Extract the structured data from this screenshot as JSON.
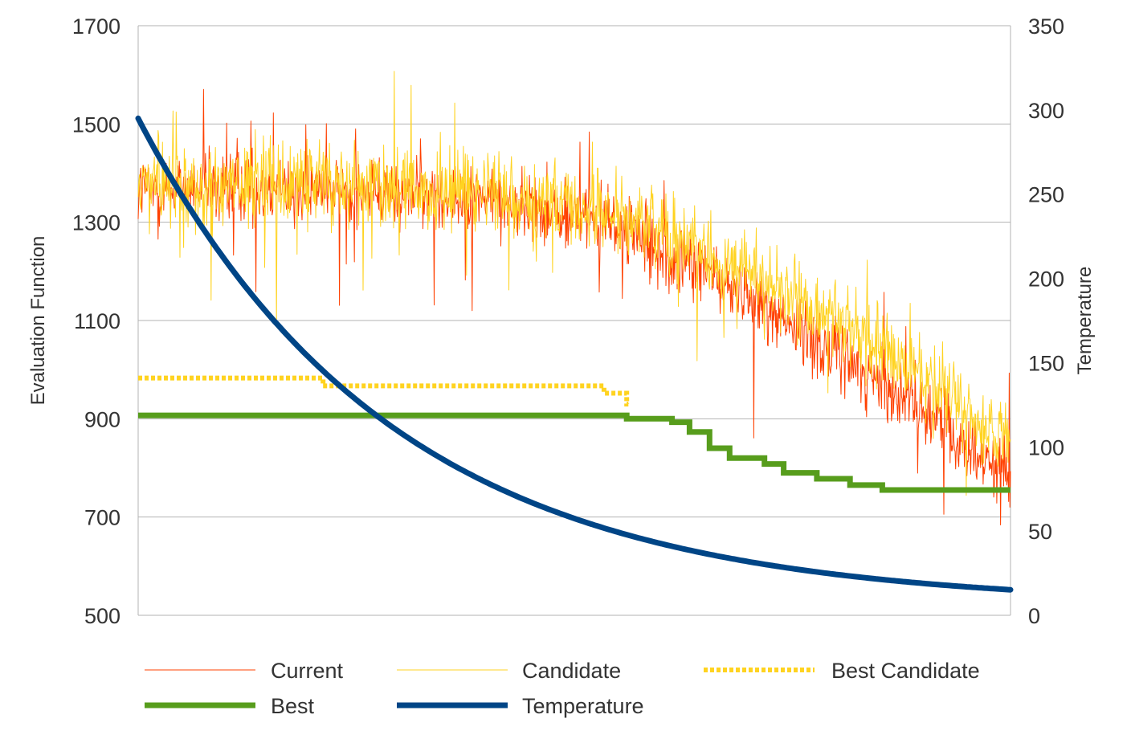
{
  "chart_data": {
    "type": "line",
    "title": "",
    "x_axis": {
      "label": "",
      "range": [
        0,
        1000
      ],
      "tick_labels_shown": false
    },
    "y_left": {
      "label": "Evaluation Function",
      "range": [
        500,
        1700
      ],
      "ticks": [
        500,
        700,
        900,
        1100,
        1300,
        1500,
        1700
      ],
      "grid": true
    },
    "y_right": {
      "label": "Temperature",
      "range": [
        0,
        350
      ],
      "ticks": [
        0,
        50,
        100,
        150,
        200,
        250,
        300,
        350
      ]
    },
    "legend": {
      "placement": "bottom",
      "entries": [
        "Current",
        "Candidate",
        "Best Candidate",
        "Best",
        "Temperature"
      ]
    },
    "series": [
      {
        "name": "Current",
        "axis": "left",
        "color": "#ff4000",
        "style": "thin-noisy",
        "trend": [
          [
            0,
            1370
          ],
          [
            200,
            1370
          ],
          [
            400,
            1350
          ],
          [
            550,
            1290
          ],
          [
            700,
            1150
          ],
          [
            850,
            980
          ],
          [
            950,
            850
          ],
          [
            1000,
            790
          ]
        ],
        "noise": 60
      },
      {
        "name": "Candidate",
        "axis": "left",
        "color": "#ffd320",
        "style": "thin-noisy",
        "trend": [
          [
            0,
            1380
          ],
          [
            200,
            1380
          ],
          [
            400,
            1360
          ],
          [
            550,
            1310
          ],
          [
            700,
            1200
          ],
          [
            850,
            1050
          ],
          [
            950,
            910
          ],
          [
            1000,
            860
          ]
        ],
        "noise": 70
      },
      {
        "name": "Best Candidate",
        "axis": "left",
        "color": "#ffd320",
        "style": "dotted-step",
        "points": [
          [
            0,
            983
          ],
          [
            212,
            983
          ],
          [
            212,
            967
          ],
          [
            534,
            967
          ],
          [
            534,
            952
          ],
          [
            560,
            952
          ],
          [
            560,
            930
          ],
          [
            562,
            930
          ]
        ]
      },
      {
        "name": "Best",
        "axis": "left",
        "color": "#579d1c",
        "style": "thick-step",
        "points": [
          [
            0,
            907
          ],
          [
            560,
            907
          ],
          [
            560,
            900
          ],
          [
            612,
            900
          ],
          [
            612,
            893
          ],
          [
            632,
            893
          ],
          [
            632,
            873
          ],
          [
            655,
            873
          ],
          [
            655,
            840
          ],
          [
            678,
            840
          ],
          [
            678,
            820
          ],
          [
            718,
            820
          ],
          [
            718,
            808
          ],
          [
            740,
            808
          ],
          [
            740,
            790
          ],
          [
            778,
            790
          ],
          [
            778,
            778
          ],
          [
            816,
            778
          ],
          [
            816,
            765
          ],
          [
            853,
            765
          ],
          [
            853,
            755
          ],
          [
            1000,
            755
          ]
        ]
      },
      {
        "name": "Temperature",
        "axis": "right",
        "color": "#004586",
        "style": "thick",
        "start": 295,
        "end": 6,
        "decay": 3.45
      }
    ]
  }
}
